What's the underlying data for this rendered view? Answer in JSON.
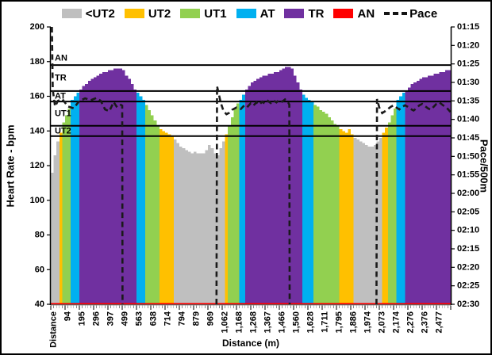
{
  "legend": {
    "items": [
      {
        "label": "<UT2",
        "color": "#BFBFBF"
      },
      {
        "label": "UT2",
        "color": "#FFC000"
      },
      {
        "label": "UT1",
        "color": "#92D050"
      },
      {
        "label": "AT",
        "color": "#00B0F0"
      },
      {
        "label": "TR",
        "color": "#7030A0"
      },
      {
        "label": "AN",
        "color": "#FF0000"
      }
    ],
    "pace_label": "Pace"
  },
  "chart_data": {
    "type": "bar+line",
    "xlabel": "Distance (m)",
    "ylabel_left": "Heart Rate - bpm",
    "ylabel_right": "Pace/500m",
    "left_axis": {
      "min": 40,
      "max": 200,
      "step": 20,
      "ticks": [
        "200",
        "180",
        "160",
        "140",
        "120",
        "100",
        "80",
        "60",
        "40"
      ]
    },
    "right_axis": {
      "min_seconds": 75,
      "max_seconds": 150,
      "step_seconds": 5,
      "ticks": [
        "01:15",
        "01:20",
        "01:25",
        "01:30",
        "01:35",
        "01:40",
        "01:45",
        "01:50",
        "01:55",
        "02:00",
        "02:05",
        "02:10",
        "02:15",
        "02:20",
        "02:25",
        "02:30"
      ]
    },
    "x_tick_labels": [
      "Distance",
      "94",
      "195",
      "296",
      "397",
      "499",
      "563",
      "638",
      "714",
      "794",
      "879",
      "969",
      "1,062",
      "1,168",
      "1,268",
      "1,367",
      "1,466",
      "1,560",
      "1,628",
      "1,711",
      "1,795",
      "1,886",
      "1,974",
      "2,073",
      "2,174",
      "2,276",
      "2,376",
      "2,477"
    ],
    "labels_every_n_bars": 5,
    "zones": [
      {
        "name": "<UT2",
        "max": 137,
        "color": "#BFBFBF"
      },
      {
        "name": "UT2",
        "max": 143,
        "color": "#FFC000"
      },
      {
        "name": "UT1",
        "max": 157,
        "color": "#92D050"
      },
      {
        "name": "AT",
        "max": 163,
        "color": "#00B0F0"
      },
      {
        "name": "TR",
        "max": 178,
        "color": "#7030A0"
      },
      {
        "name": "AN",
        "max": 250,
        "color": "#FF0000"
      }
    ],
    "zone_boundaries_bpm": [
      178,
      163,
      157,
      143,
      137
    ],
    "zone_labels": [
      {
        "text": "AN",
        "bpm": 182
      },
      {
        "text": "TR",
        "bpm": 170.5
      },
      {
        "text": "AT",
        "bpm": 160
      },
      {
        "text": "UT1",
        "bpm": 150
      },
      {
        "text": "UT2",
        "bpm": 140
      }
    ],
    "an_baseline_color": "#FF0000",
    "bars": {
      "hr": [
        116,
        126,
        134,
        139,
        145,
        149,
        153,
        158,
        160,
        162,
        164,
        166,
        167,
        169,
        170,
        171,
        172,
        173,
        174,
        174,
        175,
        175,
        176,
        176,
        176,
        175,
        172,
        170,
        167,
        164,
        162,
        160,
        158,
        155,
        152,
        149,
        146,
        143,
        141,
        140,
        139,
        138,
        137,
        135,
        133,
        131,
        130,
        129,
        128,
        127,
        128,
        127,
        127,
        127,
        129,
        132,
        130,
        127,
        126,
        130,
        134,
        138,
        143,
        148,
        153,
        156,
        158,
        161,
        164,
        166,
        168,
        169,
        170,
        171,
        172,
        172,
        173,
        173,
        174,
        174,
        175,
        176,
        177,
        177,
        176,
        172,
        168,
        164,
        161,
        159,
        158,
        157,
        155,
        154,
        152,
        151,
        150,
        148,
        146,
        144,
        143,
        141,
        140,
        139,
        141,
        138,
        136,
        135,
        134,
        133,
        132,
        131,
        131,
        132,
        134,
        136,
        139,
        142,
        145,
        149,
        153,
        158,
        160,
        162,
        163,
        165,
        167,
        168,
        169,
        170,
        171,
        171,
        172,
        172,
        173,
        173,
        174,
        174,
        175,
        175
      ]
    },
    "pace_segments_sec_per_500m": [
      [
        [
          0.4,
          75
        ],
        [
          0.7,
          92
        ],
        [
          1.5,
          96.5
        ],
        [
          2.5,
          95
        ],
        [
          4,
          94.5
        ],
        [
          6,
          96.5
        ],
        [
          8,
          97
        ],
        [
          10,
          95
        ],
        [
          12,
          94.3
        ],
        [
          14,
          94.8
        ],
        [
          16,
          94.2
        ],
        [
          17.5,
          95
        ],
        [
          19,
          97.3
        ],
        [
          20.5,
          97.8
        ],
        [
          22,
          95.3
        ],
        [
          23,
          96.5
        ],
        [
          24,
          95.8
        ],
        [
          25,
          96.3
        ],
        [
          25.1,
          150
        ]
      ],
      [
        [
          58,
          150
        ],
        [
          58.2,
          91
        ],
        [
          59.5,
          95.5
        ],
        [
          60.5,
          97.8
        ],
        [
          61.5,
          98.6
        ],
        [
          62.5,
          98.2
        ],
        [
          63.5,
          97.4
        ],
        [
          65,
          96.8
        ],
        [
          66.5,
          97.2
        ],
        [
          68,
          96
        ],
        [
          69,
          96.5
        ],
        [
          70,
          95.6
        ],
        [
          71,
          96.2
        ],
        [
          72,
          95.4
        ],
        [
          73,
          96
        ],
        [
          74,
          95.2
        ],
        [
          75,
          95.8
        ],
        [
          76,
          95
        ],
        [
          77,
          95.6
        ],
        [
          78,
          94.9
        ],
        [
          79,
          95.4
        ],
        [
          80,
          94.7
        ],
        [
          81,
          95.2
        ],
        [
          82,
          94.6
        ],
        [
          83,
          95.3
        ],
        [
          83.5,
          96
        ],
        [
          83.6,
          150
        ]
      ],
      [
        [
          114,
          150
        ],
        [
          114.2,
          94.5
        ],
        [
          115,
          96.8
        ],
        [
          116,
          98.3
        ],
        [
          117,
          97.8
        ],
        [
          118,
          97.2
        ],
        [
          119,
          96.6
        ],
        [
          120,
          96.2
        ],
        [
          121,
          96.8
        ],
        [
          122,
          97.3
        ],
        [
          123,
          96.6
        ],
        [
          124,
          96.2
        ],
        [
          125,
          96.6
        ],
        [
          126,
          97.2
        ],
        [
          127,
          97.6
        ],
        [
          128,
          97
        ],
        [
          129,
          96.2
        ],
        [
          130,
          95.8
        ],
        [
          131,
          96.4
        ],
        [
          132,
          97
        ],
        [
          133,
          97.4
        ],
        [
          134,
          96.6
        ],
        [
          135,
          95.8
        ],
        [
          136,
          95.4
        ],
        [
          137,
          96
        ],
        [
          138,
          96.6
        ],
        [
          139,
          97.2
        ],
        [
          139.9,
          98
        ]
      ]
    ]
  }
}
